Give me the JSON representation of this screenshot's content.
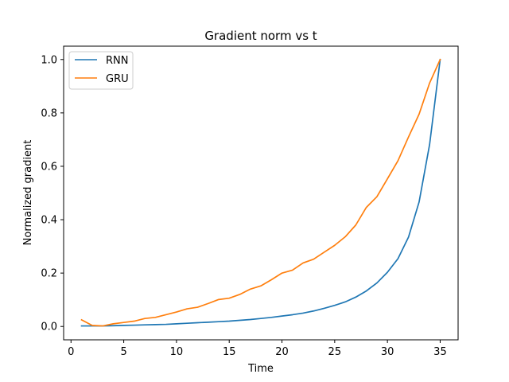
{
  "chart_data": {
    "type": "line",
    "title": "Gradient norm vs t",
    "xlabel": "Time",
    "ylabel": "Normalized gradient",
    "xlim": [
      -0.7,
      36.7
    ],
    "ylim": [
      -0.05,
      1.05
    ],
    "xticks": [
      0,
      5,
      10,
      15,
      20,
      25,
      30,
      35
    ],
    "yticks": [
      0.0,
      0.2,
      0.4,
      0.6,
      0.8,
      1.0
    ],
    "xtick_labels": [
      "0",
      "5",
      "10",
      "15",
      "20",
      "25",
      "30",
      "35"
    ],
    "ytick_labels": [
      "0.0",
      "0.2",
      "0.4",
      "0.6",
      "0.8",
      "1.0"
    ],
    "grid": false,
    "legend_position": "upper-left",
    "x": [
      1,
      2,
      3,
      4,
      5,
      6,
      7,
      8,
      9,
      10,
      11,
      12,
      13,
      14,
      15,
      16,
      17,
      18,
      19,
      20,
      21,
      22,
      23,
      24,
      25,
      26,
      27,
      28,
      29,
      30,
      31,
      32,
      33,
      34,
      35
    ],
    "series": [
      {
        "name": "RNN",
        "color": "#1f77b4",
        "values": [
          0.002,
          0.002,
          0.002,
          0.003,
          0.004,
          0.005,
          0.006,
          0.007,
          0.008,
          0.01,
          0.012,
          0.014,
          0.016,
          0.018,
          0.02,
          0.023,
          0.026,
          0.03,
          0.034,
          0.039,
          0.044,
          0.05,
          0.058,
          0.068,
          0.079,
          0.092,
          0.11,
          0.133,
          0.163,
          0.203,
          0.254,
          0.335,
          0.466,
          0.682,
          1.0
        ]
      },
      {
        "name": "GRU",
        "color": "#ff7f0e",
        "values": [
          0.025,
          0.004,
          0.002,
          0.01,
          0.015,
          0.02,
          0.03,
          0.034,
          0.044,
          0.054,
          0.066,
          0.072,
          0.086,
          0.101,
          0.106,
          0.12,
          0.14,
          0.152,
          0.175,
          0.2,
          0.211,
          0.238,
          0.252,
          0.278,
          0.304,
          0.336,
          0.38,
          0.446,
          0.486,
          0.553,
          0.621,
          0.71,
          0.795,
          0.912,
          1.0
        ]
      }
    ]
  }
}
